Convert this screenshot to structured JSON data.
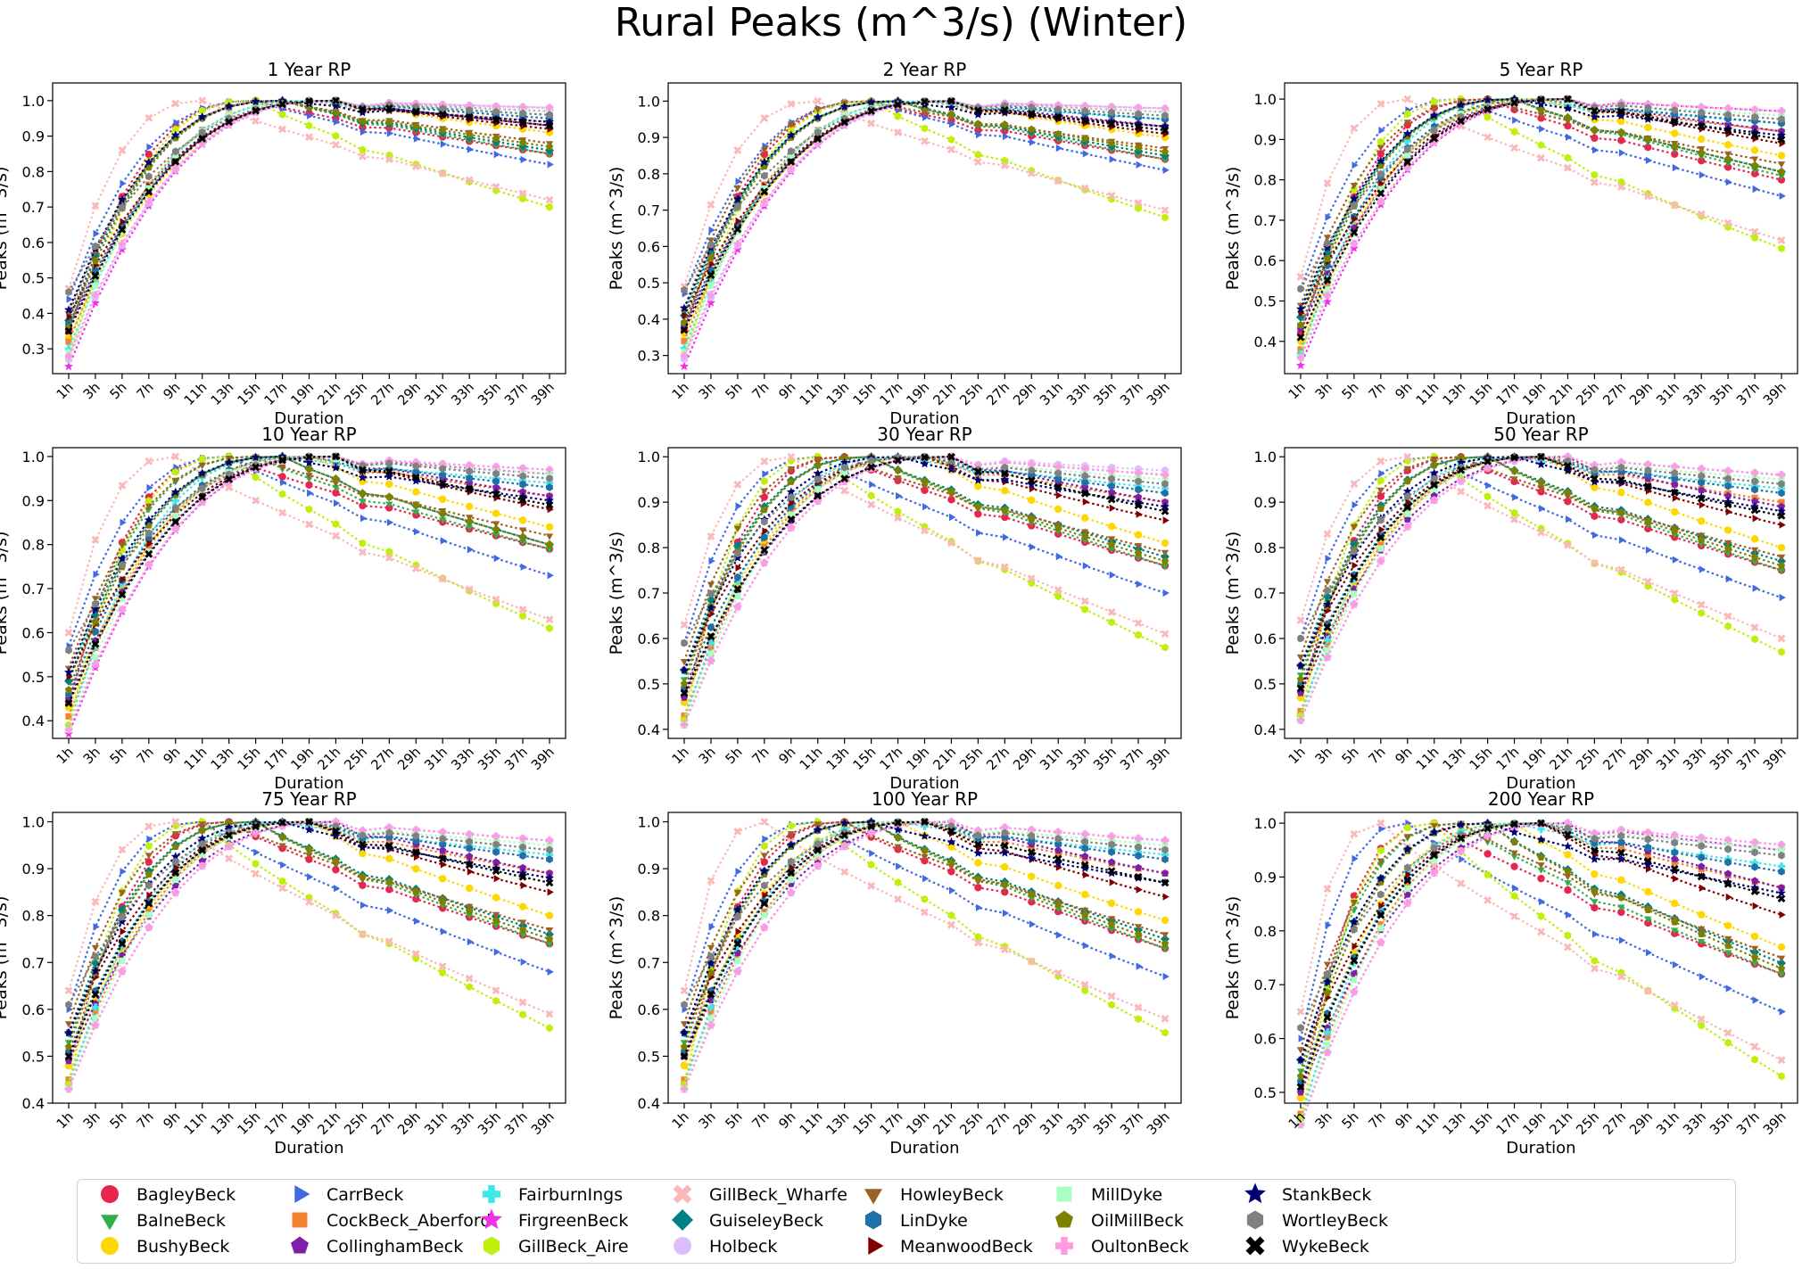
{
  "figure": {
    "title": "Rural Peaks (m^3/s) (Winter)"
  },
  "chart_data": {
    "type": "line",
    "durations": [
      "1h",
      "3h",
      "5h",
      "7h",
      "9h",
      "11h",
      "13h",
      "15h",
      "17h",
      "19h",
      "21h",
      "25h",
      "27h",
      "29h",
      "31h",
      "33h",
      "35h",
      "37h",
      "39h"
    ],
    "xlabel": "Duration",
    "ylabel": "Peaks (m^3/s)",
    "grid": false,
    "legend_placement": "bottom-center",
    "series": [
      {
        "name": "BagleyBeck",
        "color": "#e8254f",
        "marker": "circle"
      },
      {
        "name": "BalneBeck",
        "color": "#2fb04a",
        "marker": "triangle-down"
      },
      {
        "name": "BushyBeck",
        "color": "#ffd700",
        "marker": "circle"
      },
      {
        "name": "CarrBeck",
        "color": "#4169e1",
        "marker": "triangle-right"
      },
      {
        "name": "CockBeck_Aberford",
        "color": "#f58231",
        "marker": "square"
      },
      {
        "name": "CollinghamBeck",
        "color": "#7f1fa8",
        "marker": "pentagon"
      },
      {
        "name": "FairburnIngs",
        "color": "#3de8e8",
        "marker": "plus"
      },
      {
        "name": "FirgreenBeck",
        "color": "#f032e6",
        "marker": "star"
      },
      {
        "name": "GillBeck_Aire",
        "color": "#bfef0a",
        "marker": "hexagon"
      },
      {
        "name": "GillBeck_Wharfe",
        "color": "#fab8b8",
        "marker": "x"
      },
      {
        "name": "GuiseleyBeck",
        "color": "#008080",
        "marker": "diamond"
      },
      {
        "name": "Holbeck",
        "color": "#dcbeff",
        "marker": "circle"
      },
      {
        "name": "HowleyBeck",
        "color": "#9a6324",
        "marker": "triangle-down"
      },
      {
        "name": "LinDyke",
        "color": "#1f6fa8",
        "marker": "hexagon"
      },
      {
        "name": "MeanwoodBeck",
        "color": "#800000",
        "marker": "triangle-right"
      },
      {
        "name": "MillDyke",
        "color": "#aaffc3",
        "marker": "square"
      },
      {
        "name": "OilMillBeck",
        "color": "#808000",
        "marker": "pentagon"
      },
      {
        "name": "OultonBeck",
        "color": "#ff99e0",
        "marker": "plus"
      },
      {
        "name": "StankBeck",
        "color": "#000075",
        "marker": "star"
      },
      {
        "name": "WortleyBeck",
        "color": "#808080",
        "marker": "hexagon"
      },
      {
        "name": "WykeBeck",
        "color": "#000000",
        "marker": "x"
      }
    ],
    "panels": [
      {
        "title": "1 Year RP",
        "ylim": [
          0.23,
          1.05
        ],
        "yticks": [
          0.3,
          0.4,
          0.5,
          0.6,
          0.7,
          0.8,
          0.9,
          1.0
        ],
        "first": [
          0.35,
          0.4,
          0.33,
          0.44,
          0.32,
          0.36,
          0.3,
          0.25,
          0.27,
          0.47,
          0.38,
          0.27,
          0.4,
          0.37,
          0.39,
          0.29,
          0.36,
          0.28,
          0.41,
          0.46,
          0.35
        ],
        "end": [
          0.85,
          0.85,
          0.91,
          0.82,
          0.94,
          0.93,
          0.96,
          0.97,
          0.7,
          0.72,
          0.86,
          0.98,
          0.88,
          0.95,
          0.92,
          0.97,
          0.87,
          0.98,
          0.94,
          0.96,
          0.93
        ]
      },
      {
        "title": "2 Year RP",
        "ylim": [
          0.25,
          1.05
        ],
        "yticks": [
          0.3,
          0.4,
          0.5,
          0.6,
          0.7,
          0.8,
          0.9,
          1.0
        ],
        "first": [
          0.37,
          0.42,
          0.36,
          0.47,
          0.34,
          0.38,
          0.32,
          0.27,
          0.29,
          0.49,
          0.41,
          0.29,
          0.43,
          0.39,
          0.41,
          0.31,
          0.39,
          0.3,
          0.43,
          0.48,
          0.37
        ],
        "end": [
          0.84,
          0.84,
          0.9,
          0.81,
          0.93,
          0.93,
          0.95,
          0.97,
          0.68,
          0.7,
          0.85,
          0.98,
          0.87,
          0.95,
          0.91,
          0.97,
          0.86,
          0.98,
          0.93,
          0.96,
          0.92
        ]
      },
      {
        "title": "5 Year RP",
        "ylim": [
          0.32,
          1.04
        ],
        "yticks": [
          0.4,
          0.5,
          0.6,
          0.7,
          0.8,
          0.9,
          1.0
        ],
        "first": [
          0.42,
          0.47,
          0.4,
          0.53,
          0.38,
          0.43,
          0.37,
          0.34,
          0.36,
          0.56,
          0.46,
          0.36,
          0.49,
          0.44,
          0.47,
          0.36,
          0.44,
          0.36,
          0.48,
          0.53,
          0.41
        ],
        "end": [
          0.8,
          0.81,
          0.86,
          0.76,
          0.92,
          0.92,
          0.94,
          0.97,
          0.63,
          0.65,
          0.82,
          0.97,
          0.84,
          0.94,
          0.89,
          0.96,
          0.82,
          0.97,
          0.91,
          0.95,
          0.9
        ]
      },
      {
        "title": "10 Year RP",
        "ylim": [
          0.36,
          1.02
        ],
        "yticks": [
          0.4,
          0.5,
          0.6,
          0.7,
          0.8,
          0.9,
          1.0
        ],
        "first": [
          0.44,
          0.49,
          0.43,
          0.57,
          0.41,
          0.45,
          0.39,
          0.37,
          0.39,
          0.6,
          0.49,
          0.38,
          0.52,
          0.46,
          0.5,
          0.38,
          0.47,
          0.38,
          0.51,
          0.56,
          0.44
        ],
        "end": [
          0.79,
          0.79,
          0.84,
          0.73,
          0.91,
          0.91,
          0.94,
          0.96,
          0.61,
          0.63,
          0.8,
          0.97,
          0.82,
          0.93,
          0.88,
          0.96,
          0.8,
          0.97,
          0.9,
          0.95,
          0.89
        ]
      },
      {
        "title": "30 Year RP",
        "ylim": [
          0.38,
          1.02
        ],
        "yticks": [
          0.4,
          0.5,
          0.6,
          0.7,
          0.8,
          0.9,
          1.0
        ],
        "first": [
          0.46,
          0.51,
          0.46,
          0.59,
          0.43,
          0.47,
          0.42,
          0.41,
          0.42,
          0.63,
          0.53,
          0.41,
          0.55,
          0.49,
          0.53,
          0.41,
          0.5,
          0.41,
          0.53,
          0.59,
          0.48
        ],
        "end": [
          0.76,
          0.76,
          0.81,
          0.7,
          0.9,
          0.9,
          0.93,
          0.96,
          0.58,
          0.61,
          0.78,
          0.97,
          0.79,
          0.92,
          0.86,
          0.95,
          0.77,
          0.96,
          0.89,
          0.94,
          0.88
        ]
      },
      {
        "title": "50 Year RP",
        "ylim": [
          0.38,
          1.02
        ],
        "yticks": [
          0.4,
          0.5,
          0.6,
          0.7,
          0.8,
          0.9,
          1.0
        ],
        "first": [
          0.47,
          0.52,
          0.47,
          0.6,
          0.44,
          0.48,
          0.43,
          0.42,
          0.43,
          0.64,
          0.54,
          0.42,
          0.56,
          0.5,
          0.54,
          0.42,
          0.51,
          0.42,
          0.54,
          0.6,
          0.49
        ],
        "end": [
          0.75,
          0.75,
          0.8,
          0.69,
          0.9,
          0.89,
          0.93,
          0.96,
          0.57,
          0.6,
          0.77,
          0.96,
          0.78,
          0.92,
          0.85,
          0.95,
          0.76,
          0.96,
          0.88,
          0.94,
          0.87
        ]
      },
      {
        "title": "75 Year RP",
        "ylim": [
          0.4,
          1.02
        ],
        "yticks": [
          0.4,
          0.5,
          0.6,
          0.7,
          0.8,
          0.9,
          1.0
        ],
        "first": [
          0.48,
          0.53,
          0.48,
          0.6,
          0.45,
          0.49,
          0.44,
          0.43,
          0.44,
          0.64,
          0.55,
          0.43,
          0.57,
          0.51,
          0.55,
          0.43,
          0.52,
          0.43,
          0.55,
          0.61,
          0.5
        ],
        "end": [
          0.74,
          0.74,
          0.8,
          0.68,
          0.89,
          0.89,
          0.93,
          0.96,
          0.56,
          0.59,
          0.76,
          0.96,
          0.77,
          0.92,
          0.85,
          0.95,
          0.75,
          0.96,
          0.88,
          0.94,
          0.87
        ]
      },
      {
        "title": "100 Year RP",
        "ylim": [
          0.4,
          1.02
        ],
        "yticks": [
          0.4,
          0.5,
          0.6,
          0.7,
          0.8,
          0.9,
          1.0
        ],
        "first": [
          0.48,
          0.53,
          0.48,
          0.6,
          0.45,
          0.5,
          0.44,
          0.43,
          0.44,
          0.64,
          0.55,
          0.43,
          0.57,
          0.51,
          0.55,
          0.43,
          0.52,
          0.43,
          0.55,
          0.61,
          0.5
        ],
        "end": [
          0.73,
          0.73,
          0.79,
          0.67,
          0.89,
          0.89,
          0.93,
          0.96,
          0.55,
          0.58,
          0.75,
          0.96,
          0.76,
          0.92,
          0.84,
          0.95,
          0.74,
          0.96,
          0.87,
          0.94,
          0.87
        ]
      },
      {
        "title": "200 Year RP",
        "ylim": [
          0.48,
          1.02
        ],
        "yticks": [
          0.5,
          0.6,
          0.7,
          0.8,
          0.9,
          1.0
        ],
        "first": [
          0.49,
          0.54,
          0.49,
          0.6,
          0.46,
          0.5,
          0.45,
          0.44,
          0.45,
          0.65,
          0.56,
          0.44,
          0.58,
          0.52,
          0.56,
          0.44,
          0.53,
          0.44,
          0.56,
          0.62,
          0.51
        ],
        "end": [
          0.72,
          0.72,
          0.77,
          0.65,
          0.88,
          0.88,
          0.92,
          0.95,
          0.53,
          0.56,
          0.74,
          0.96,
          0.75,
          0.91,
          0.83,
          0.95,
          0.73,
          0.96,
          0.87,
          0.94,
          0.86
        ]
      }
    ]
  }
}
